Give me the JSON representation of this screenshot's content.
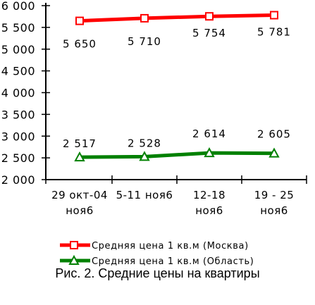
{
  "chart_data": {
    "type": "line",
    "categories": [
      [
        "29 окт-04",
        "ноя6"
      ],
      [
        "5-11 ноя6",
        ""
      ],
      [
        "12-18",
        "ноя6"
      ],
      [
        "19 - 25",
        "ноя6"
      ]
    ],
    "ylim": [
      2000,
      6000
    ],
    "yticks": [
      "6 000",
      "5 500",
      "5 000",
      "4 500",
      "4 000",
      "3 500",
      "3 000",
      "2 500",
      "2 000"
    ],
    "ytick_values": [
      6000,
      5500,
      5000,
      4500,
      4000,
      3500,
      3000,
      2500,
      2000
    ],
    "grid": false,
    "legend_position": "bottom",
    "series": [
      {
        "name": "Средняя цена 1 кв.м (Москва)",
        "values": [
          5650,
          5710,
          5754,
          5781
        ],
        "labels": [
          "5 650",
          "5 710",
          "5 754",
          "5 781"
        ],
        "color": "#ff0000",
        "marker": "square"
      },
      {
        "name": "Средняя цена 1 кв.м (Область)",
        "values": [
          2517,
          2528,
          2614,
          2605
        ],
        "labels": [
          "2 517",
          "2 528",
          "2 614",
          "2 605"
        ],
        "color": "#008000",
        "marker": "triangle"
      }
    ]
  },
  "caption": "Рис. 2. Средние цены на квартиры"
}
